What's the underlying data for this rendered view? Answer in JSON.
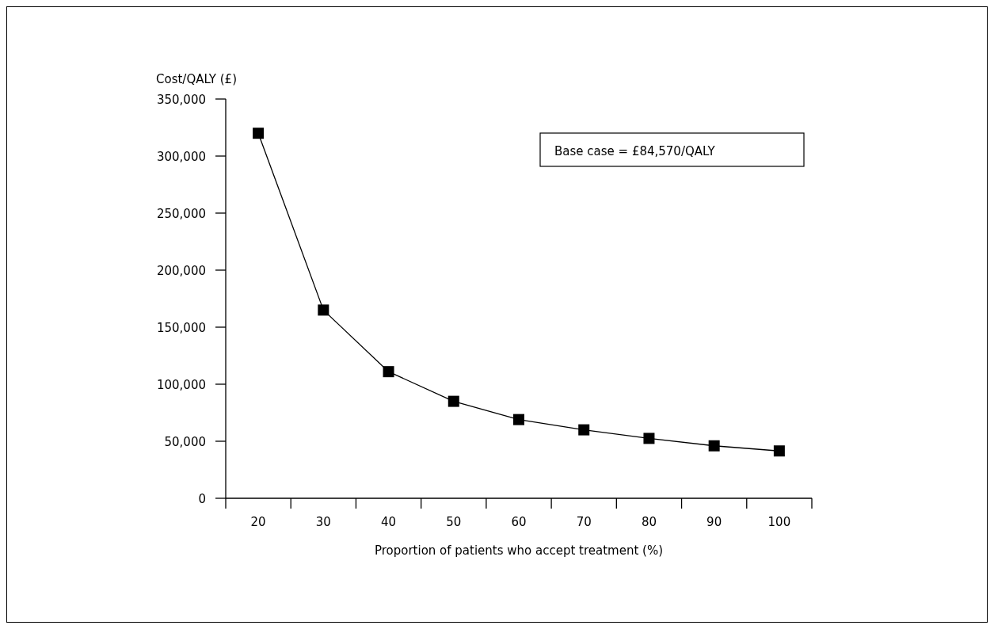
{
  "chart_data": {
    "type": "line",
    "ylabel": "Cost/QALY (£)",
    "xlabel": "Proportion of patients who accept treatment (%)",
    "categories": [
      "20",
      "30",
      "40",
      "50",
      "60",
      "70",
      "80",
      "90",
      "100"
    ],
    "series": [
      {
        "color": "#000000",
        "values": [
          320000,
          165000,
          111000,
          85000,
          69000,
          60000,
          52500,
          46000,
          41500
        ]
      }
    ],
    "ylim": [
      0,
      350000
    ],
    "yticks": [
      {
        "value": 0,
        "label": "0"
      },
      {
        "value": 50000,
        "label": "50,000"
      },
      {
        "value": 100000,
        "label": "100,000"
      },
      {
        "value": 150000,
        "label": "150,000"
      },
      {
        "value": 200000,
        "label": "200,000"
      },
      {
        "value": 250000,
        "label": "250,000"
      },
      {
        "value": 300000,
        "label": "300,000"
      },
      {
        "value": 350000,
        "label": "350,000"
      }
    ],
    "annotations": [
      "Base case = £84,570/QALY"
    ],
    "marker": "square",
    "line_style": "solid"
  }
}
